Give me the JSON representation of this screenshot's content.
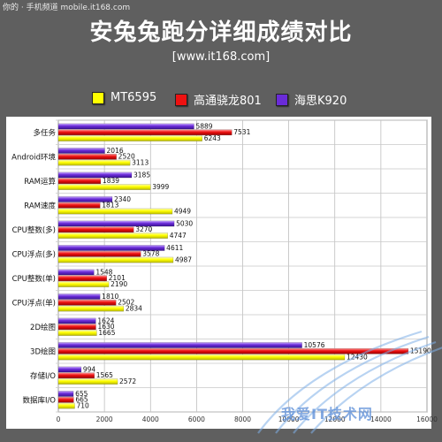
{
  "header": {
    "watermark": "你的 · 手机频道 mobile.it168.com",
    "title": "安兔兔跑分详细成绩对比",
    "subtitle": "[www.it168.com]"
  },
  "colors": {
    "background": "#5f5f5f",
    "series": [
      "#ffff00",
      "#ee1111",
      "#6a2bd8"
    ]
  },
  "legend": {
    "items": [
      {
        "label": "MT6595",
        "color": "#ffff00"
      },
      {
        "label": "高通骁龙801",
        "color": "#ee1111"
      },
      {
        "label": "海思K920",
        "color": "#6a2bd8"
      }
    ]
  },
  "footer": {
    "site_watermark": "我爱IT技术网"
  },
  "chart_data": {
    "type": "bar",
    "orientation": "horizontal",
    "categories": [
      "多任务",
      "Android环境",
      "RAM运算",
      "RAM速度",
      "CPU整数(多)",
      "CPU浮点(多)",
      "CPU整数(单)",
      "CPU浮点(单)",
      "2D绘图",
      "3D绘图",
      "存储I/O",
      "数据库I/O"
    ],
    "series": [
      {
        "name": "海思K920",
        "values": [
          5889,
          2016,
          3185,
          2340,
          5030,
          4611,
          1548,
          1810,
          1624,
          10576,
          994,
          655
        ]
      },
      {
        "name": "高通骁龙801",
        "values": [
          7531,
          2520,
          1839,
          1813,
          3270,
          3578,
          2101,
          2502,
          1630,
          15190,
          1565,
          665
        ]
      },
      {
        "name": "MT6595",
        "values": [
          6243,
          3113,
          3999,
          4949,
          4747,
          4987,
          2190,
          2834,
          1665,
          12430,
          2572,
          710
        ]
      }
    ],
    "xlim": [
      0,
      16000
    ],
    "xticks": [
      0,
      2000,
      4000,
      6000,
      8000,
      10000,
      12000,
      14000,
      16000
    ],
    "grid": true,
    "legend_position": "top"
  }
}
